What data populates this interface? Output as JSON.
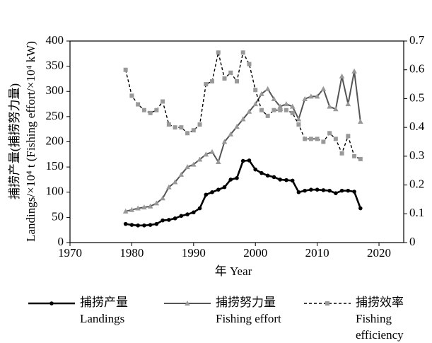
{
  "chart_data": {
    "type": "line",
    "x_label": "年 Year",
    "y_label": [
      "捕捞产量(捕捞努力量)",
      "Landings/×10⁴ t (Fishing effort/×10⁴ kW)"
    ],
    "x": [
      1979,
      1980,
      1981,
      1982,
      1983,
      1984,
      1985,
      1986,
      1987,
      1988,
      1989,
      1990,
      1991,
      1992,
      1993,
      1994,
      1995,
      1996,
      1997,
      1998,
      1999,
      2000,
      2001,
      2002,
      2003,
      2004,
      2005,
      2006,
      2007,
      2008,
      2009,
      2010,
      2011,
      2012,
      2013,
      2014,
      2015,
      2016,
      2017
    ],
    "xlim": [
      1970,
      2024
    ],
    "xticks": [
      1970,
      1980,
      1990,
      2000,
      2010,
      2020
    ],
    "ylim": [
      0,
      400
    ],
    "yticks": [
      0,
      50,
      100,
      150,
      200,
      250,
      300,
      350,
      400
    ],
    "y2lim": [
      0,
      0.7
    ],
    "y2ticks": [
      0,
      0.1,
      0.2,
      0.3,
      0.4,
      0.5,
      0.6,
      0.7
    ],
    "series": [
      {
        "name": [
          "捕捞产量",
          "Landings"
        ],
        "color": "#000000",
        "marker": "circle",
        "dash": false,
        "values": [
          37,
          35,
          34,
          34,
          35,
          37,
          44,
          45,
          48,
          53,
          56,
          60,
          68,
          95,
          100,
          105,
          110,
          125,
          128,
          162,
          163,
          145,
          138,
          133,
          130,
          125,
          124,
          123,
          100,
          103,
          105,
          105,
          104,
          103,
          98,
          103,
          103,
          101,
          68
        ]
      },
      {
        "name": [
          "捕捞努力量",
          "Fishing effort"
        ],
        "color": "#555555",
        "marker": "triangle",
        "dash": false,
        "values": [
          62,
          65,
          68,
          70,
          72,
          78,
          88,
          110,
          120,
          135,
          150,
          155,
          165,
          175,
          180,
          160,
          200,
          215,
          230,
          245,
          260,
          275,
          295,
          305,
          285,
          270,
          275,
          270,
          245,
          285,
          290,
          290,
          305,
          270,
          265,
          330,
          275,
          340,
          240
        ]
      },
      {
        "name": [
          "捕捞效率",
          "Fishing",
          "efficiency"
        ],
        "color": "#000000",
        "marker": "square",
        "dash": true,
        "axis": "y2",
        "values": [
          0.6,
          0.51,
          0.48,
          0.46,
          0.45,
          0.46,
          0.49,
          0.41,
          0.4,
          0.4,
          0.38,
          0.39,
          0.41,
          0.55,
          0.56,
          0.66,
          0.57,
          0.59,
          0.56,
          0.66,
          0.62,
          0.53,
          0.46,
          0.44,
          0.46,
          0.46,
          0.46,
          0.45,
          0.41,
          0.36,
          0.36,
          0.36,
          0.35,
          0.38,
          0.36,
          0.31,
          0.37,
          0.3,
          0.29
        ]
      }
    ]
  }
}
